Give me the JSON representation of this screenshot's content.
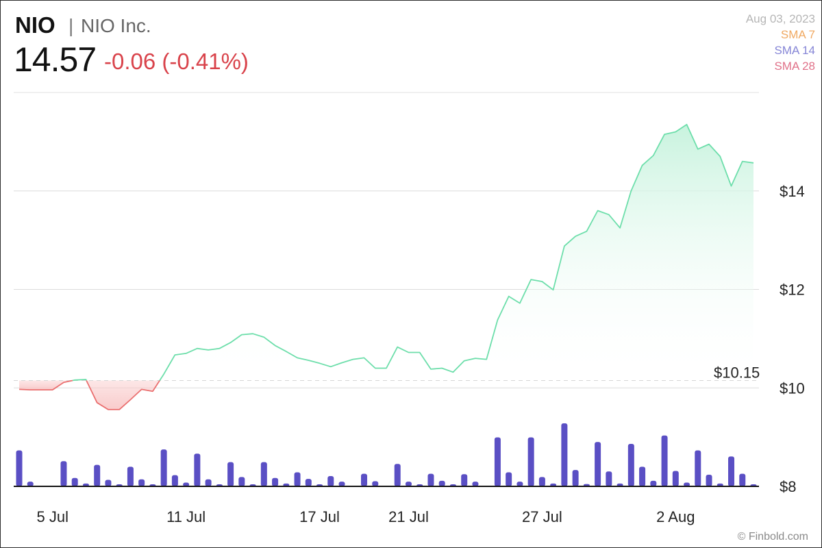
{
  "header": {
    "ticker": "NIO",
    "separator": "|",
    "company": "NIO Inc.",
    "price": "14.57",
    "change": "-0.06 (-0.41%)"
  },
  "legend": {
    "date": "Aug 03, 2023",
    "items": [
      {
        "label": "SMA 7",
        "color": "#f0a860"
      },
      {
        "label": "SMA 14",
        "color": "#8585d6"
      },
      {
        "label": "SMA 28",
        "color": "#e07088"
      }
    ]
  },
  "credit": "© Finbold.com",
  "chart_data": {
    "type": "line",
    "y_unit": "$",
    "ylim": [
      8,
      16
    ],
    "y_ticks": [
      {
        "value": 8,
        "label": "$8"
      },
      {
        "value": 10,
        "label": "$10"
      },
      {
        "value": 12,
        "label": "$12"
      },
      {
        "value": 14,
        "label": "$14"
      }
    ],
    "x_ticks": [
      {
        "label": "5 Jul",
        "index": 3
      },
      {
        "label": "11 Jul",
        "index": 15
      },
      {
        "label": "17 Jul",
        "index": 27
      },
      {
        "label": "21 Jul",
        "index": 35
      },
      {
        "label": "27 Jul",
        "index": 47
      },
      {
        "label": "2 Aug",
        "index": 59
      }
    ],
    "reference": {
      "value": 10.15,
      "label": "$10.15"
    },
    "colors": {
      "up": "#6cdeaa",
      "down": "#ea6f6f",
      "up_fill": "#c8f3de",
      "down_fill": "#f9c9c9",
      "volume": "#5a4fc4"
    },
    "price": [
      9.97,
      9.96,
      9.96,
      9.96,
      10.11,
      10.16,
      10.17,
      9.7,
      9.56,
      9.56,
      9.76,
      9.97,
      9.93,
      10.28,
      10.67,
      10.7,
      10.8,
      10.77,
      10.8,
      10.92,
      11.08,
      11.1,
      11.03,
      10.86,
      10.74,
      10.61,
      10.56,
      10.5,
      10.43,
      10.51,
      10.58,
      10.61,
      10.4,
      10.4,
      10.83,
      10.72,
      10.72,
      10.38,
      10.4,
      10.32,
      10.55,
      10.6,
      10.58,
      11.38,
      11.86,
      11.72,
      12.2,
      12.16,
      11.99,
      12.88,
      13.08,
      13.18,
      13.6,
      13.52,
      13.25,
      14.0,
      14.52,
      14.72,
      15.15,
      15.2,
      15.35,
      14.85,
      14.95,
      14.7,
      14.1,
      14.6,
      14.57
    ],
    "volume": [
      7.7,
      1.0,
      0,
      0,
      5.4,
      1.8,
      0.6,
      4.6,
      1.4,
      0.3,
      4.2,
      1.5,
      0.4,
      7.9,
      2.4,
      0.8,
      7.0,
      1.5,
      0.2,
      5.2,
      2.0,
      0.4,
      5.2,
      1.8,
      0.6,
      3.0,
      1.6,
      0.3,
      2.2,
      1.0,
      0,
      2.7,
      1.1,
      0,
      4.8,
      1.0,
      0.3,
      2.7,
      1.2,
      0.4,
      2.6,
      1.0,
      0,
      10.5,
      3.0,
      1.0,
      10.5,
      2.0,
      0.6,
      13.5,
      3.5,
      0.5,
      9.5,
      3.2,
      0.6,
      9.1,
      4.2,
      1.2,
      10.9,
      3.3,
      0.8,
      7.7,
      2.5,
      0.6,
      6.4,
      2.7,
      0.4
    ]
  }
}
